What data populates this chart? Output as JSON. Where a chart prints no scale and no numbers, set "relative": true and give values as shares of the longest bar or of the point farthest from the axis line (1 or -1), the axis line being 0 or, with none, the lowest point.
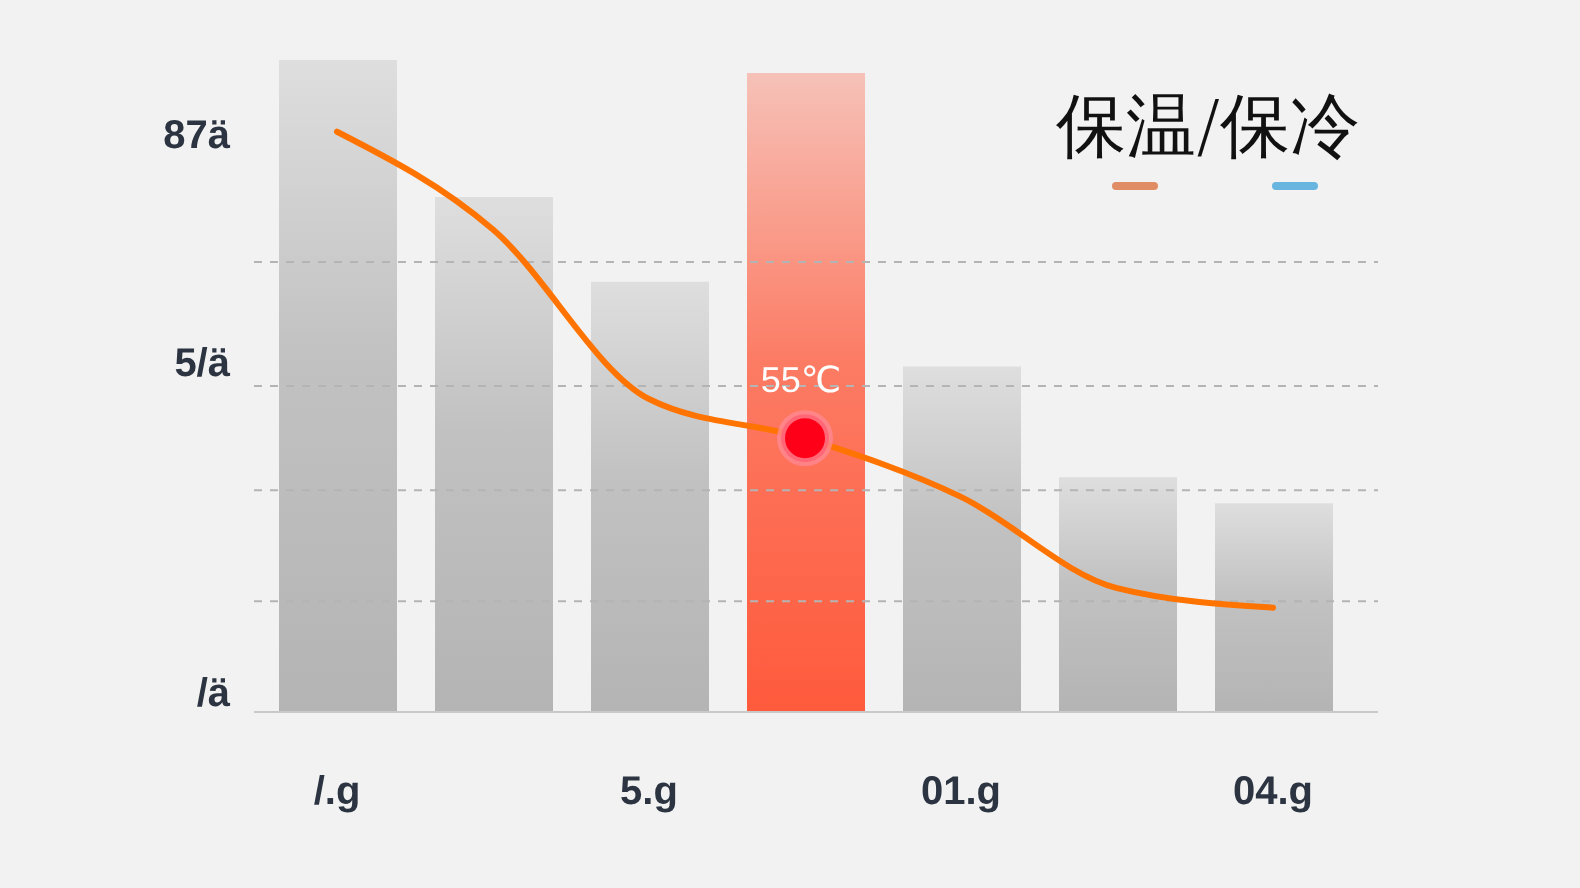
{
  "chart_data": {
    "type": "bar",
    "title": "保温/保冷",
    "relative": true,
    "categories": [
      "/.g",
      null,
      "5.g",
      null,
      "01.g",
      null,
      "04.g"
    ],
    "series": [
      {
        "colors": [
          "#b4b4b4",
          "#b4b4b4",
          "#b4b4b4",
          "#ff5a3c",
          "#b4b4b4",
          "#b4b4b4",
          "#b4b4b4"
        ],
        "values": [
          1,
          0.79,
          0.66,
          0.98,
          0.53,
          0.36,
          0.32
        ]
      },
      {
        "type": "line",
        "color": "#ff7300",
        "values": [
          0.89,
          0.74,
          0.48,
          0.42,
          0.33,
          0.19,
          0.16
        ]
      },
      {
        "type": "scatter",
        "color": "#ff0019",
        "marker": "circle",
        "values": [
          null,
          null,
          null,
          0.42,
          null,
          null,
          null
        ]
      }
    ],
    "annotations": [
      "87ä",
      "5/ä",
      "/ä",
      {
        "text": "55℃",
        "y": 0.42
      }
    ],
    "ref_lines": [
      {
        "axis": "y",
        "value": 0.17,
        "color": "#b4b4b4",
        "line_style": "dashed"
      },
      {
        "axis": "y",
        "value": 0.34,
        "color": "#b4b4b4",
        "line_style": "dashed"
      },
      {
        "axis": "y",
        "value": 0.5,
        "color": "#b4b4b4",
        "line_style": "dashed"
      },
      {
        "axis": "y",
        "value": 0.69,
        "color": "#b4b4b4",
        "line_style": "dashed"
      }
    ]
  }
}
